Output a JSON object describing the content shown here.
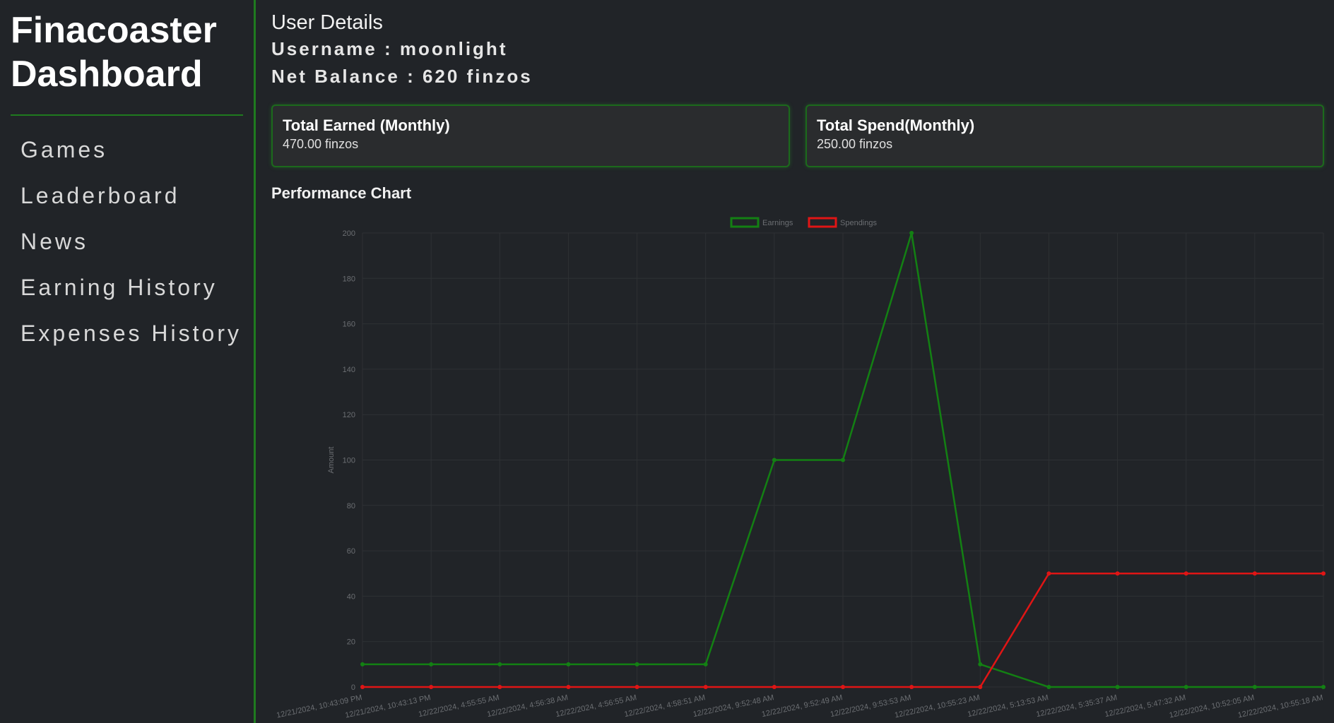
{
  "sidebar": {
    "brand_line1": "Finacoaster",
    "brand_line2": "Dashboard",
    "items": [
      {
        "label": "Games"
      },
      {
        "label": "Leaderboard"
      },
      {
        "label": "News"
      },
      {
        "label": "Earning History"
      },
      {
        "label": "Expenses History"
      }
    ]
  },
  "user": {
    "heading": "User Details",
    "username_line": "Username : moonlight",
    "balance_line": "Net Balance : 620 finzos"
  },
  "cards": [
    {
      "title": "Total Earned (Monthly)",
      "value": "470.00 finzos"
    },
    {
      "title": "Total Spend(Monthly)",
      "value": "250.00 finzos"
    }
  ],
  "chart_title": "Performance Chart",
  "chart_data": {
    "type": "line",
    "ylabel": "Amount",
    "ylim": [
      0,
      200
    ],
    "yticks": [
      0,
      20,
      40,
      60,
      80,
      100,
      120,
      140,
      160,
      180,
      200
    ],
    "grid": true,
    "legend_position": "top",
    "categories": [
      "12/21/2024, 10:43:09 PM",
      "12/21/2024, 10:43:13 PM",
      "12/22/2024, 4:55:55 AM",
      "12/22/2024, 4:56:38 AM",
      "12/22/2024, 4:56:55 AM",
      "12/22/2024, 4:58:51 AM",
      "12/22/2024, 9:52:48 AM",
      "12/22/2024, 9:52:49 AM",
      "12/22/2024, 9:53:53 AM",
      "12/22/2024, 10:55:23 AM",
      "12/22/2024, 5:13:53 AM",
      "12/22/2024, 5:35:37 AM",
      "12/22/2024, 5:47:32 AM",
      "12/22/2024, 10:52:05 AM",
      "12/22/2024, 10:55:18 AM"
    ],
    "series": [
      {
        "name": "Earnings",
        "color": "#138013",
        "values": [
          10,
          10,
          10,
          10,
          10,
          10,
          100,
          100,
          200,
          10,
          0,
          0,
          0,
          0,
          0
        ]
      },
      {
        "name": "Spendings",
        "color": "#e01515",
        "values": [
          0,
          0,
          0,
          0,
          0,
          0,
          0,
          0,
          0,
          0,
          50,
          50,
          50,
          50,
          50
        ]
      }
    ]
  }
}
